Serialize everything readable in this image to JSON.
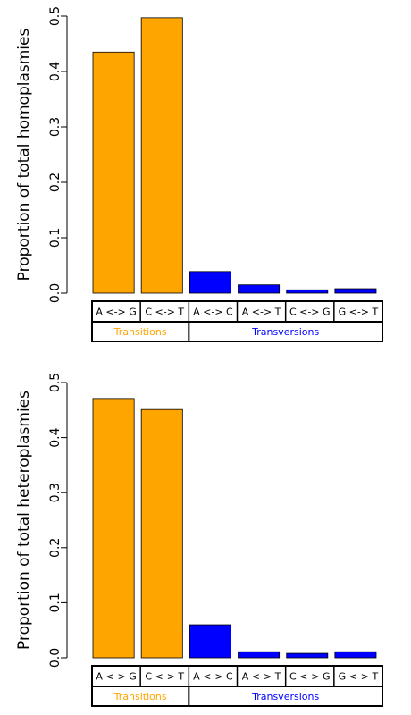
{
  "chart_data": [
    {
      "type": "bar",
      "ylabel": "Proportion of total homoplasmies",
      "categories": [
        "A <-> G",
        "C <-> T",
        "A <-> C",
        "A <-> T",
        "C <-> G",
        "G <-> T"
      ],
      "series": [
        {
          "name": "Transitions",
          "color": "#FFA500",
          "values": [
            0.435,
            0.497,
            null,
            null,
            null,
            null
          ]
        },
        {
          "name": "Transversions",
          "color": "#0000FF",
          "values": [
            null,
            null,
            0.039,
            0.015,
            0.006,
            0.008
          ]
        }
      ],
      "ylim": [
        0,
        0.5
      ],
      "yticks": [
        {
          "value": 0,
          "label": "0.0"
        },
        0.1,
        0.2,
        0.3,
        0.4,
        0.5
      ]
    },
    {
      "type": "bar",
      "ylabel": "Proportion of total heteroplasmies",
      "categories": [
        "A <-> G",
        "C <-> T",
        "A <-> C",
        "A <-> T",
        "C <-> G",
        "G <-> T"
      ],
      "series": [
        {
          "name": "Transitions",
          "color": "#FFA500",
          "values": [
            0.471,
            0.451,
            null,
            null,
            null,
            null
          ]
        },
        {
          "name": "Transversions",
          "color": "#0000FF",
          "values": [
            null,
            null,
            0.06,
            0.011,
            0.008,
            0.011
          ]
        }
      ],
      "ylim": [
        0,
        0.5
      ],
      "yticks": [
        {
          "value": 0,
          "label": "0.0"
        },
        0.1,
        0.2,
        0.3,
        0.4,
        0.5
      ]
    }
  ]
}
